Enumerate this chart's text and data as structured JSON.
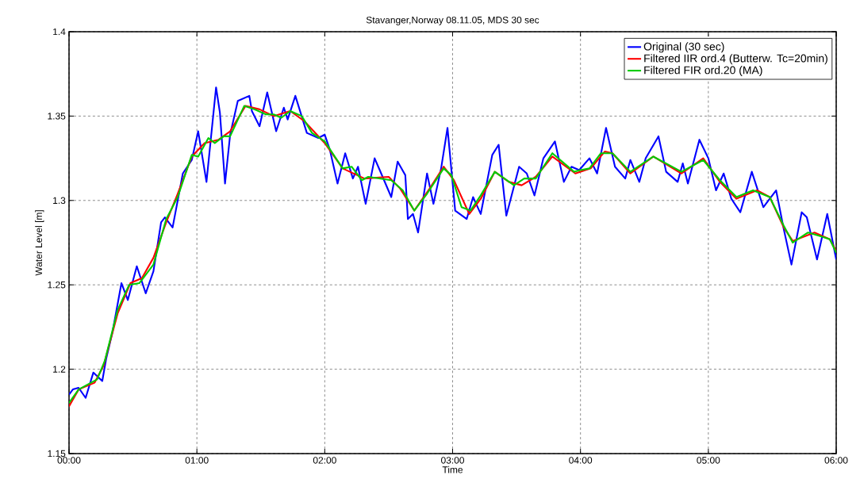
{
  "chart_data": {
    "type": "line",
    "title": "Stavanger,Norway 08.11.05, MDS 30 sec",
    "xlabel": "Time",
    "ylabel": "Water Level [m]",
    "xlim": [
      0,
      6
    ],
    "ylim": [
      1.15,
      1.4
    ],
    "xticks": [
      {
        "value": 0,
        "label": "00:00"
      },
      {
        "value": 1,
        "label": "01:00"
      },
      {
        "value": 2,
        "label": "02:00"
      },
      {
        "value": 3,
        "label": "03:00"
      },
      {
        "value": 4,
        "label": "04:00"
      },
      {
        "value": 5,
        "label": "05:00"
      },
      {
        "value": 6,
        "label": "06:00"
      }
    ],
    "yticks": [
      1.15,
      1.2,
      1.25,
      1.3,
      1.35,
      1.4
    ],
    "grid": true,
    "legend": "top right",
    "series": [
      {
        "name": "Original (30 sec)",
        "color": "#0000ff",
        "x": [
          0,
          0.03,
          0.075,
          0.13,
          0.19,
          0.26,
          0.29,
          0.34,
          0.41,
          0.46,
          0.53,
          0.6,
          0.66,
          0.72,
          0.75,
          0.81,
          0.89,
          0.96,
          1.01,
          1.075,
          1.15,
          1.18,
          1.22,
          1.26,
          1.32,
          1.41,
          1.43,
          1.49,
          1.55,
          1.62,
          1.68,
          1.71,
          1.77,
          1.86,
          1.95,
          2.0,
          2.04,
          2.1,
          2.16,
          2.22,
          2.26,
          2.32,
          2.39,
          2.43,
          2.52,
          2.57,
          2.63,
          2.65,
          2.69,
          2.73,
          2.8,
          2.85,
          2.91,
          2.96,
          3.02,
          3.11,
          3.16,
          3.22,
          3.31,
          3.36,
          3.42,
          3.52,
          3.58,
          3.64,
          3.71,
          3.8,
          3.87,
          3.93,
          3.99,
          4.07,
          4.13,
          4.2,
          4.27,
          4.35,
          4.39,
          4.46,
          4.51,
          4.61,
          4.67,
          4.76,
          4.8,
          4.84,
          4.93,
          5.0,
          5.06,
          5.12,
          5.18,
          5.25,
          5.34,
          5.43,
          5.53,
          5.59,
          5.65,
          5.73,
          5.77,
          5.85,
          5.93,
          6.0
        ],
        "values": [
          1.185,
          1.188,
          1.189,
          1.183,
          1.198,
          1.193,
          1.206,
          1.222,
          1.251,
          1.241,
          1.261,
          1.245,
          1.258,
          1.287,
          1.29,
          1.284,
          1.316,
          1.324,
          1.341,
          1.311,
          1.367,
          1.352,
          1.31,
          1.339,
          1.359,
          1.362,
          1.353,
          1.344,
          1.364,
          1.341,
          1.355,
          1.348,
          1.362,
          1.34,
          1.337,
          1.339,
          1.33,
          1.31,
          1.328,
          1.313,
          1.32,
          1.298,
          1.325,
          1.318,
          1.302,
          1.323,
          1.315,
          1.289,
          1.292,
          1.281,
          1.316,
          1.298,
          1.319,
          1.343,
          1.294,
          1.289,
          1.302,
          1.292,
          1.327,
          1.333,
          1.291,
          1.32,
          1.316,
          1.303,
          1.325,
          1.335,
          1.311,
          1.32,
          1.318,
          1.325,
          1.316,
          1.343,
          1.32,
          1.313,
          1.324,
          1.311,
          1.325,
          1.338,
          1.317,
          1.311,
          1.322,
          1.31,
          1.336,
          1.325,
          1.306,
          1.316,
          1.301,
          1.293,
          1.317,
          1.296,
          1.306,
          1.283,
          1.262,
          1.293,
          1.29,
          1.265,
          1.292,
          1.265
        ]
      },
      {
        "name": "Filtered IIR ord.4 (Butterw. Tc=20min)",
        "color": "#ff0000",
        "x": [
          0,
          0.075,
          0.2,
          0.27,
          0.38,
          0.48,
          0.57,
          0.66,
          0.76,
          0.85,
          0.96,
          1.06,
          1.17,
          1.26,
          1.38,
          1.49,
          1.6,
          1.73,
          1.84,
          2.0,
          2.14,
          2.31,
          2.5,
          2.59,
          2.7,
          2.82,
          2.93,
          3.01,
          3.13,
          3.22,
          3.33,
          3.44,
          3.54,
          3.65,
          3.78,
          3.96,
          4.08,
          4.19,
          4.25,
          4.39,
          4.57,
          4.79,
          4.96,
          5.09,
          5.22,
          5.38,
          5.48,
          5.59,
          5.66,
          5.83,
          5.95,
          6.0
        ],
        "values": [
          1.178,
          1.188,
          1.192,
          1.202,
          1.233,
          1.251,
          1.254,
          1.266,
          1.287,
          1.304,
          1.326,
          1.334,
          1.336,
          1.341,
          1.356,
          1.354,
          1.35,
          1.353,
          1.347,
          1.334,
          1.319,
          1.313,
          1.314,
          1.307,
          1.294,
          1.307,
          1.32,
          1.312,
          1.292,
          1.301,
          1.317,
          1.311,
          1.309,
          1.314,
          1.326,
          1.316,
          1.319,
          1.329,
          1.328,
          1.316,
          1.326,
          1.316,
          1.325,
          1.311,
          1.301,
          1.306,
          1.302,
          1.284,
          1.276,
          1.281,
          1.277,
          1.27
        ]
      },
      {
        "name": "Filtered FIR ord.20 (MA)",
        "color": "#00cc00",
        "x": [
          0,
          0.075,
          0.22,
          0.28,
          0.38,
          0.47,
          0.55,
          0.66,
          0.76,
          0.85,
          0.96,
          1.01,
          1.09,
          1.14,
          1.21,
          1.26,
          1.37,
          1.45,
          1.54,
          1.6,
          1.66,
          1.73,
          1.82,
          1.9,
          2.0,
          2.14,
          2.21,
          2.29,
          2.34,
          2.52,
          2.61,
          2.7,
          2.8,
          2.93,
          2.99,
          3.07,
          3.14,
          3.22,
          3.33,
          3.48,
          3.56,
          3.65,
          3.78,
          3.95,
          4.0,
          4.07,
          4.16,
          4.25,
          4.39,
          4.57,
          4.79,
          4.96,
          5.09,
          5.22,
          5.35,
          5.48,
          5.59,
          5.66,
          5.78,
          5.87,
          5.95,
          6.0
        ],
        "values": [
          1.18,
          1.188,
          1.194,
          1.205,
          1.235,
          1.25,
          1.251,
          1.262,
          1.289,
          1.302,
          1.327,
          1.326,
          1.337,
          1.334,
          1.338,
          1.338,
          1.356,
          1.354,
          1.351,
          1.351,
          1.349,
          1.353,
          1.35,
          1.34,
          1.335,
          1.319,
          1.32,
          1.312,
          1.314,
          1.312,
          1.306,
          1.294,
          1.304,
          1.319,
          1.315,
          1.296,
          1.294,
          1.303,
          1.317,
          1.309,
          1.313,
          1.313,
          1.328,
          1.317,
          1.318,
          1.319,
          1.328,
          1.328,
          1.317,
          1.326,
          1.317,
          1.324,
          1.312,
          1.302,
          1.306,
          1.302,
          1.285,
          1.275,
          1.281,
          1.279,
          1.277,
          1.269
        ]
      }
    ]
  }
}
